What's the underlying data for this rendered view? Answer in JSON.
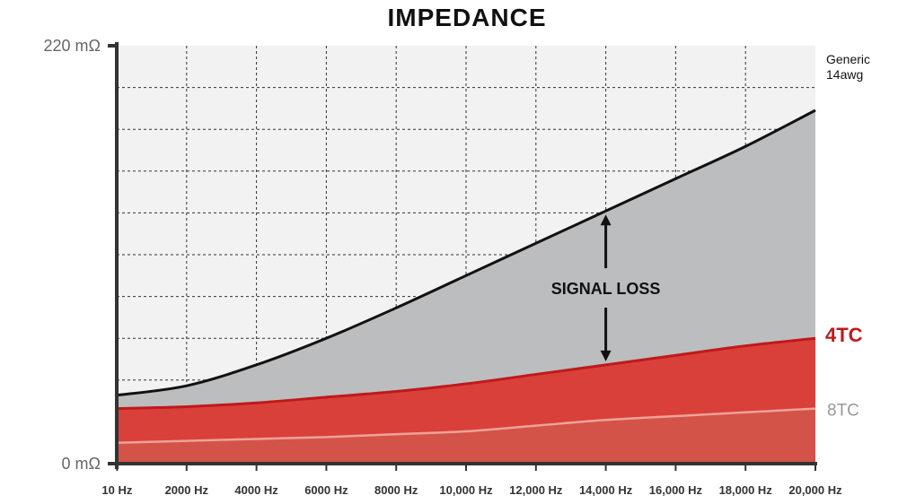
{
  "chart_data": {
    "type": "area",
    "title": "IMPEDANCE",
    "xlabel": "",
    "ylabel": "",
    "xlim": [
      0,
      20000
    ],
    "ylim": [
      0,
      220
    ],
    "y_tick_labels": [
      "0 mΩ",
      "220 mΩ"
    ],
    "x_tick_labels": [
      "10 Hz",
      "2000 Hz",
      "4000 Hz",
      "6000 Hz",
      "8000 Hz",
      "10,000 Hz",
      "12,000 Hz",
      "14,000 Hz",
      "16,000 Hz",
      "18,000 Hz",
      "20,000 Hz"
    ],
    "x": [
      10,
      2000,
      4000,
      6000,
      8000,
      10000,
      12000,
      14000,
      16000,
      18000,
      20000
    ],
    "grid": true,
    "series": [
      {
        "name": "Generic 14awg",
        "label_lines": [
          "Generic",
          "14awg"
        ],
        "color": "#111111",
        "fill": "#bcbdbf",
        "values": [
          36,
          41,
          52,
          66,
          82,
          99,
          116,
          133,
          150,
          167,
          186
        ]
      },
      {
        "name": "4TC",
        "color": "#c0191b",
        "fill": "#d9403a",
        "values": [
          29,
          30,
          32,
          35,
          38,
          42,
          47,
          52,
          57,
          62,
          66
        ]
      },
      {
        "name": "8TC",
        "color": "#eda399",
        "fill": "#d45348",
        "values": [
          11,
          12,
          13,
          14,
          15.5,
          17,
          20,
          23,
          25,
          27,
          29
        ]
      }
    ],
    "annotations": [
      {
        "text": "SIGNAL LOSS",
        "x": 14000,
        "y_top": 133,
        "y_bottom": 52
      }
    ]
  },
  "colors": {
    "plot_background": "#f2f2f2",
    "gridline": "#333333",
    "axis": "#333333"
  }
}
